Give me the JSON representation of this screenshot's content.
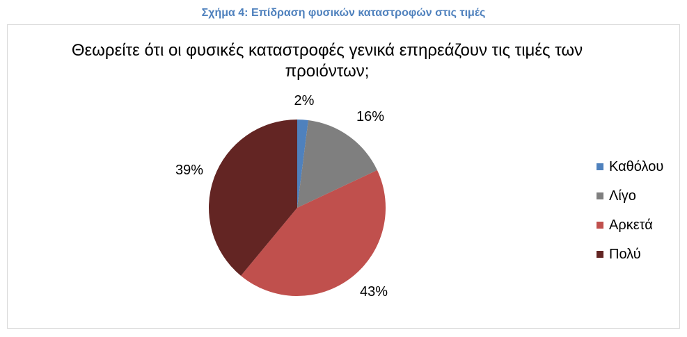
{
  "caption": {
    "text": "Σχήμα 4: Επίδραση φυσικών καταστροφών στις τιμές",
    "color": "#4f81bd"
  },
  "chart_data": {
    "type": "pie",
    "title": "Θεωρείτε ότι οι φυσικές καταστροφές γενικά επηρεάζουν τις τιμές των προιόντων;",
    "legend_position": "right",
    "slices": [
      {
        "label": "Καθόλου",
        "value": 2,
        "display": "2%",
        "color": "#4f81bd"
      },
      {
        "label": "Λίγο",
        "value": 16,
        "display": "16%",
        "color": "#7f7f7f"
      },
      {
        "label": "Αρκετά",
        "value": 43,
        "display": "43%",
        "color": "#c0504d"
      },
      {
        "label": "Πολύ",
        "value": 39,
        "display": "39%",
        "color": "#632523"
      }
    ]
  }
}
